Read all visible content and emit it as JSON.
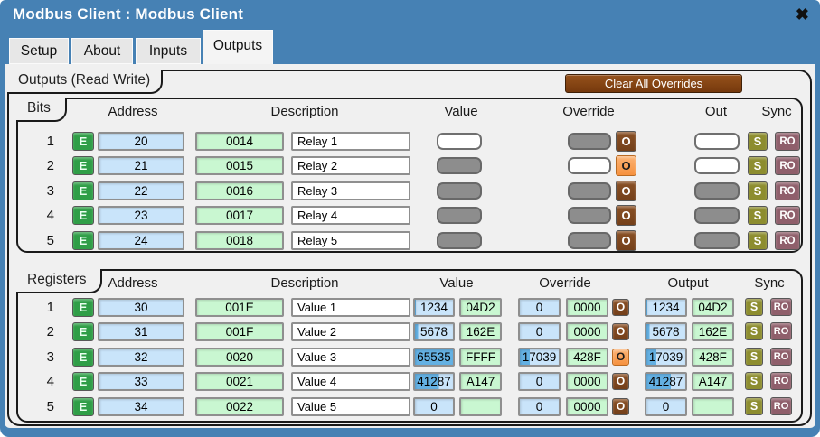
{
  "window": {
    "title": "Modbus Client : Modbus Client",
    "close_icon": "✖"
  },
  "tabs": [
    {
      "label": "Setup",
      "active": false
    },
    {
      "label": "About",
      "active": false
    },
    {
      "label": "Inputs",
      "active": false
    },
    {
      "label": "Outputs",
      "active": true
    }
  ],
  "outputs_group": {
    "label": "Outputs (Read Write)",
    "clear_overrides_button": "Clear All Overrides",
    "buttons": {
      "enable": "E",
      "override": "O",
      "sync": "S",
      "readonly": "RO"
    },
    "bits": {
      "label": "Bits",
      "headers": [
        "Address",
        "Description",
        "Value",
        "Override",
        "Out",
        "Sync"
      ],
      "rows": [
        {
          "num": "1",
          "addr_dec": "20",
          "addr_hex": "0014",
          "desc": "Relay 1",
          "value_on": false,
          "override_on": true,
          "override_active": false,
          "out_on": false
        },
        {
          "num": "2",
          "addr_dec": "21",
          "addr_hex": "0015",
          "desc": "Relay 2",
          "value_on": true,
          "override_on": false,
          "override_active": true,
          "out_on": false
        },
        {
          "num": "3",
          "addr_dec": "22",
          "addr_hex": "0016",
          "desc": "Relay 3",
          "value_on": true,
          "override_on": true,
          "override_active": false,
          "out_on": true
        },
        {
          "num": "4",
          "addr_dec": "23",
          "addr_hex": "0017",
          "desc": "Relay 4",
          "value_on": true,
          "override_on": true,
          "override_active": false,
          "out_on": true
        },
        {
          "num": "5",
          "addr_dec": "24",
          "addr_hex": "0018",
          "desc": "Relay 5",
          "value_on": true,
          "override_on": true,
          "override_active": false,
          "out_on": true
        }
      ]
    },
    "registers": {
      "label": "Registers",
      "headers": [
        "Address",
        "Description",
        "Value",
        "Override",
        "Output",
        "Sync"
      ],
      "max_value": 65535,
      "rows": [
        {
          "num": "1",
          "addr_dec": "30",
          "addr_hex": "001E",
          "desc": "Value 1",
          "val_dec": "1234",
          "val_hex": "04D2",
          "ovr_dec": "0",
          "ovr_hex": "0000",
          "override_active": false,
          "out_dec": "1234",
          "out_hex": "04D2"
        },
        {
          "num": "2",
          "addr_dec": "31",
          "addr_hex": "001F",
          "desc": "Value 2",
          "val_dec": "5678",
          "val_hex": "162E",
          "ovr_dec": "0",
          "ovr_hex": "0000",
          "override_active": false,
          "out_dec": "5678",
          "out_hex": "162E"
        },
        {
          "num": "3",
          "addr_dec": "32",
          "addr_hex": "0020",
          "desc": "Value 3",
          "val_dec": "65535",
          "val_hex": "FFFF",
          "ovr_dec": "17039",
          "ovr_hex": "428F",
          "override_active": true,
          "out_dec": "17039",
          "out_hex": "428F"
        },
        {
          "num": "4",
          "addr_dec": "33",
          "addr_hex": "0021",
          "desc": "Value 4",
          "val_dec": "41287",
          "val_hex": "A147",
          "ovr_dec": "0",
          "ovr_hex": "0000",
          "override_active": false,
          "out_dec": "41287",
          "out_hex": "A147"
        },
        {
          "num": "5",
          "addr_dec": "34",
          "addr_hex": "0022",
          "desc": "Value 5",
          "val_dec": "0",
          "val_hex": "",
          "ovr_dec": "0",
          "ovr_hex": "0000",
          "override_active": false,
          "out_dec": "0",
          "out_hex": ""
        }
      ]
    }
  },
  "colors": {
    "titlebar_blue": "#4681b4",
    "content_gray": "#f0f0f0",
    "enable_green": "#2f9e47",
    "dec_field_blue": "#c9e4fa",
    "hex_field_green": "#c9f7d1",
    "value_fill_blue": "#64b1e3",
    "lamp_gray": "#8d8d8d",
    "override_brown": "#74401a",
    "override_active_orange": "#f6913e",
    "sync_olive": "#8d8d2f",
    "readonly_mauve": "#8f5f6b",
    "clear_button_brown": "#96521b"
  }
}
